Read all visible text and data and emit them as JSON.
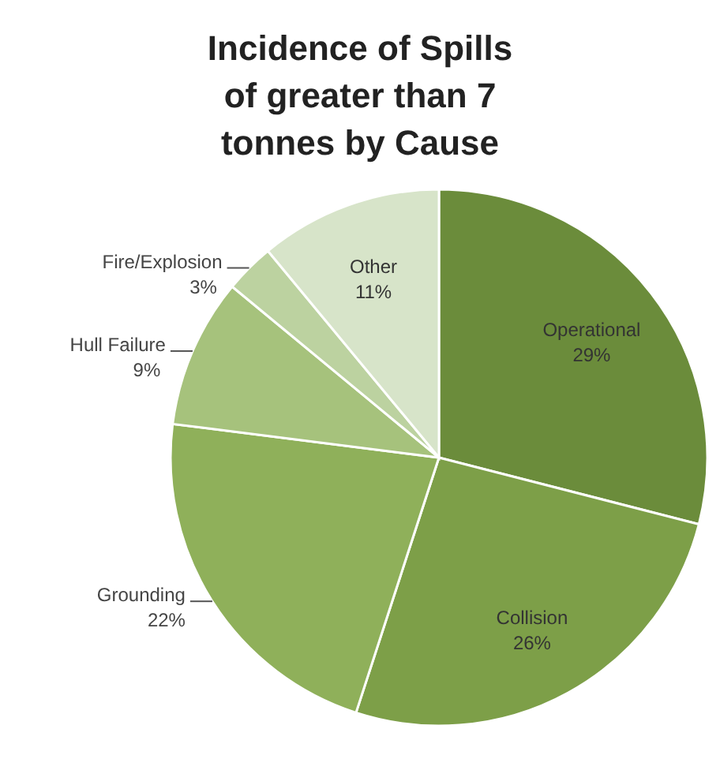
{
  "chart_data": {
    "type": "pie",
    "title": "Incidence of Spills of greater than 7 tonnes by Cause",
    "categories": [
      "Operational",
      "Collision",
      "Grounding",
      "Hull Failure",
      "Fire/Explosion",
      "Other"
    ],
    "values": [
      29,
      26,
      22,
      9,
      3,
      11
    ],
    "value_labels": [
      "29%",
      "26%",
      "22%",
      "9%",
      "3%",
      "11%"
    ],
    "colors": [
      "#6b8c3b",
      "#7d9f48",
      "#8fb05a",
      "#a6c27c",
      "#bcd2a0",
      "#d7e4c9"
    ],
    "legend": false
  }
}
